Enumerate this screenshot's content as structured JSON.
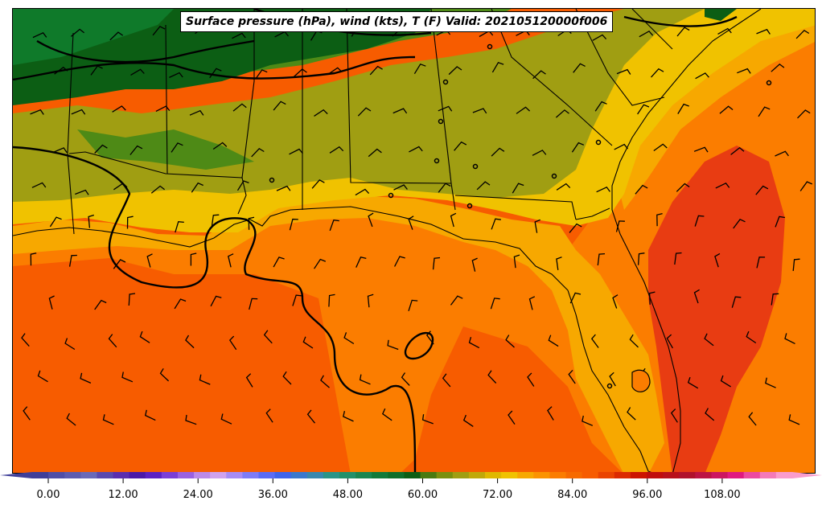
{
  "title": "Surface pressure (hPa), wind (kts), T (F) Valid: 202105120000f006",
  "colors": {
    "dark_green": "#0c5e14",
    "green": "#0f7a2a",
    "mid_green": "#4e8a16",
    "olive": "#a09e12",
    "yellow": "#f0c200",
    "light_orange": "#f7a800",
    "orange": "#fb7d00",
    "deep_orange": "#f75c00",
    "red_orange": "#e83c12",
    "land_line": "#000000"
  },
  "colorbar": {
    "tick_labels": [
      "0.00",
      "12.00",
      "24.00",
      "36.00",
      "48.00",
      "60.00",
      "72.00",
      "84.00",
      "96.00",
      "108.00"
    ],
    "tick_values": [
      0,
      12,
      24,
      36,
      48,
      60,
      72,
      84,
      96,
      108
    ],
    "min": -6,
    "max": 120,
    "step": 3,
    "colors": [
      "#3f3f99",
      "#4f4fa6",
      "#5c5caf",
      "#6a6ab8",
      "#5a4aae",
      "#5a2fae",
      "#4a1aa8",
      "#5b22c2",
      "#7b3fd6",
      "#9a62e0",
      "#bc8ae8",
      "#cfa2ee",
      "#a78cf4",
      "#7e7cf6",
      "#5a6cf5",
      "#3e64ea",
      "#3a78cc",
      "#3888ae",
      "#2a9488",
      "#22906a",
      "#1a8650",
      "#127a3a",
      "#0f6e2a",
      "#0c5e14",
      "#4a7a10",
      "#7a8f0e",
      "#a09e12",
      "#c0a80a",
      "#e0b800",
      "#f0c200",
      "#f7a800",
      "#fb9300",
      "#fb7d00",
      "#f76a00",
      "#f75c00",
      "#ea4400",
      "#dc2a00",
      "#cc1400",
      "#c00c0c",
      "#b8101a",
      "#b0122c",
      "#bc1444",
      "#cc1660",
      "#e01a80",
      "#ec4aa0",
      "#f47ab8",
      "#fa9ccc"
    ]
  },
  "highs_lows": []
}
